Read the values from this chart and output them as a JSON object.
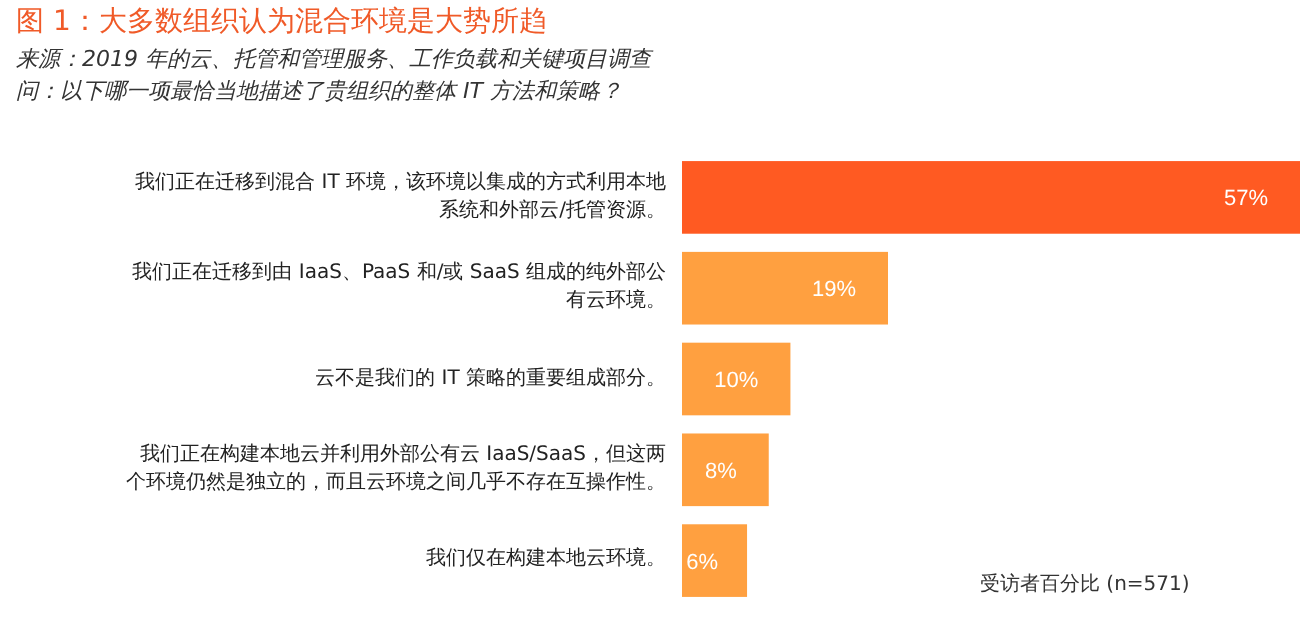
{
  "chart_data": {
    "type": "bar",
    "orientation": "horizontal",
    "title": "图 1：大多数组织认为混合环境是大势所趋",
    "subtitle": "问：以下哪一项最恰当地描述了贵组织的整体 IT 方法和策略？",
    "annotations": [
      "来源：2019 年的云、托管和管理服务、工作负载和关键项目调查",
      "受访者百分比 (n=571)"
    ],
    "categories": [
      "我们正在迁移到混合 IT 环境，该环境以集成的方式利用本地系统和外部云/托管资源。",
      "我们正在迁移到由 IaaS、PaaS 和/或 SaaS 组成的纯外部公有云环境。",
      "云不是我们的 IT 策略的重要组成部分。",
      "我们正在构建本地云并利用外部公有云 IaaS/SaaS，但这两个环境仍然是独立的，而且云环境之间几乎不存在互操作性。",
      "我们仅在构建本地云环境。"
    ],
    "values": [
      57,
      19,
      10,
      8,
      6
    ],
    "colors": [
      "#ff5a22",
      "#ffa040",
      "#ffa040",
      "#ffa040",
      "#ffa040"
    ],
    "value_labels": [
      "57%",
      "19%",
      "10%",
      "8%",
      "6%"
    ]
  }
}
